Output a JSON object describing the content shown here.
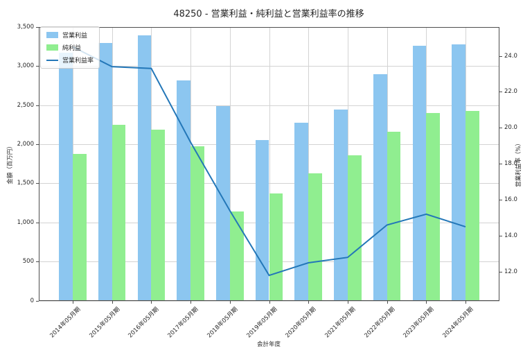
{
  "chart_data": {
    "type": "bar",
    "title": "48250 - 営業利益・純利益と営業利益率の推移",
    "xlabel": "会計年度",
    "ylabel_left": "金額（百万円）",
    "ylabel_right": "営業利益率（%）",
    "categories": [
      "2014年05月期",
      "2015年05月期",
      "2016年05月期",
      "2017年05月期",
      "2018年05月期",
      "2019年05月期",
      "2020年05月期",
      "2021年05月期",
      "2022年05月期",
      "2023年05月期",
      "2024年05月期"
    ],
    "series": [
      {
        "name": "営業利益",
        "type": "bar",
        "axis": "left",
        "color": "#8cc6f0",
        "values": [
          3170,
          3300,
          3390,
          2820,
          2490,
          2050,
          2280,
          2440,
          2900,
          3260,
          3280
        ]
      },
      {
        "name": "純利益",
        "type": "bar",
        "axis": "left",
        "color": "#90ee90",
        "values": [
          1880,
          2250,
          2190,
          1970,
          1140,
          1370,
          1630,
          1860,
          2160,
          2400,
          2430
        ]
      },
      {
        "name": "営業利益率",
        "type": "line",
        "axis": "right",
        "color": "#2377b8",
        "values": [
          24.5,
          23.4,
          23.3,
          19.2,
          15.4,
          11.8,
          12.5,
          12.8,
          14.6,
          15.2,
          14.5
        ]
      }
    ],
    "left_ylim": [
      0,
      3500
    ],
    "right_ylim": [
      10.4,
      25.6
    ],
    "left_ticks": [
      "0",
      "500",
      "1,000",
      "1,500",
      "2,000",
      "2,500",
      "3,000",
      "3,500"
    ],
    "left_tick_values": [
      0,
      500,
      1000,
      1500,
      2000,
      2500,
      3000,
      3500
    ],
    "right_ticks": [
      "12.0",
      "14.0",
      "16.0",
      "18.0",
      "20.0",
      "22.0",
      "24.0"
    ],
    "right_tick_values": [
      12,
      14,
      16,
      18,
      20,
      22,
      24
    ],
    "grid": true,
    "legend_position": "upper-left",
    "colors": {
      "grid": "#d3d3d3",
      "spine": "#4d4d4d",
      "text": "#262626",
      "legend_border": "#cccccc"
    }
  }
}
